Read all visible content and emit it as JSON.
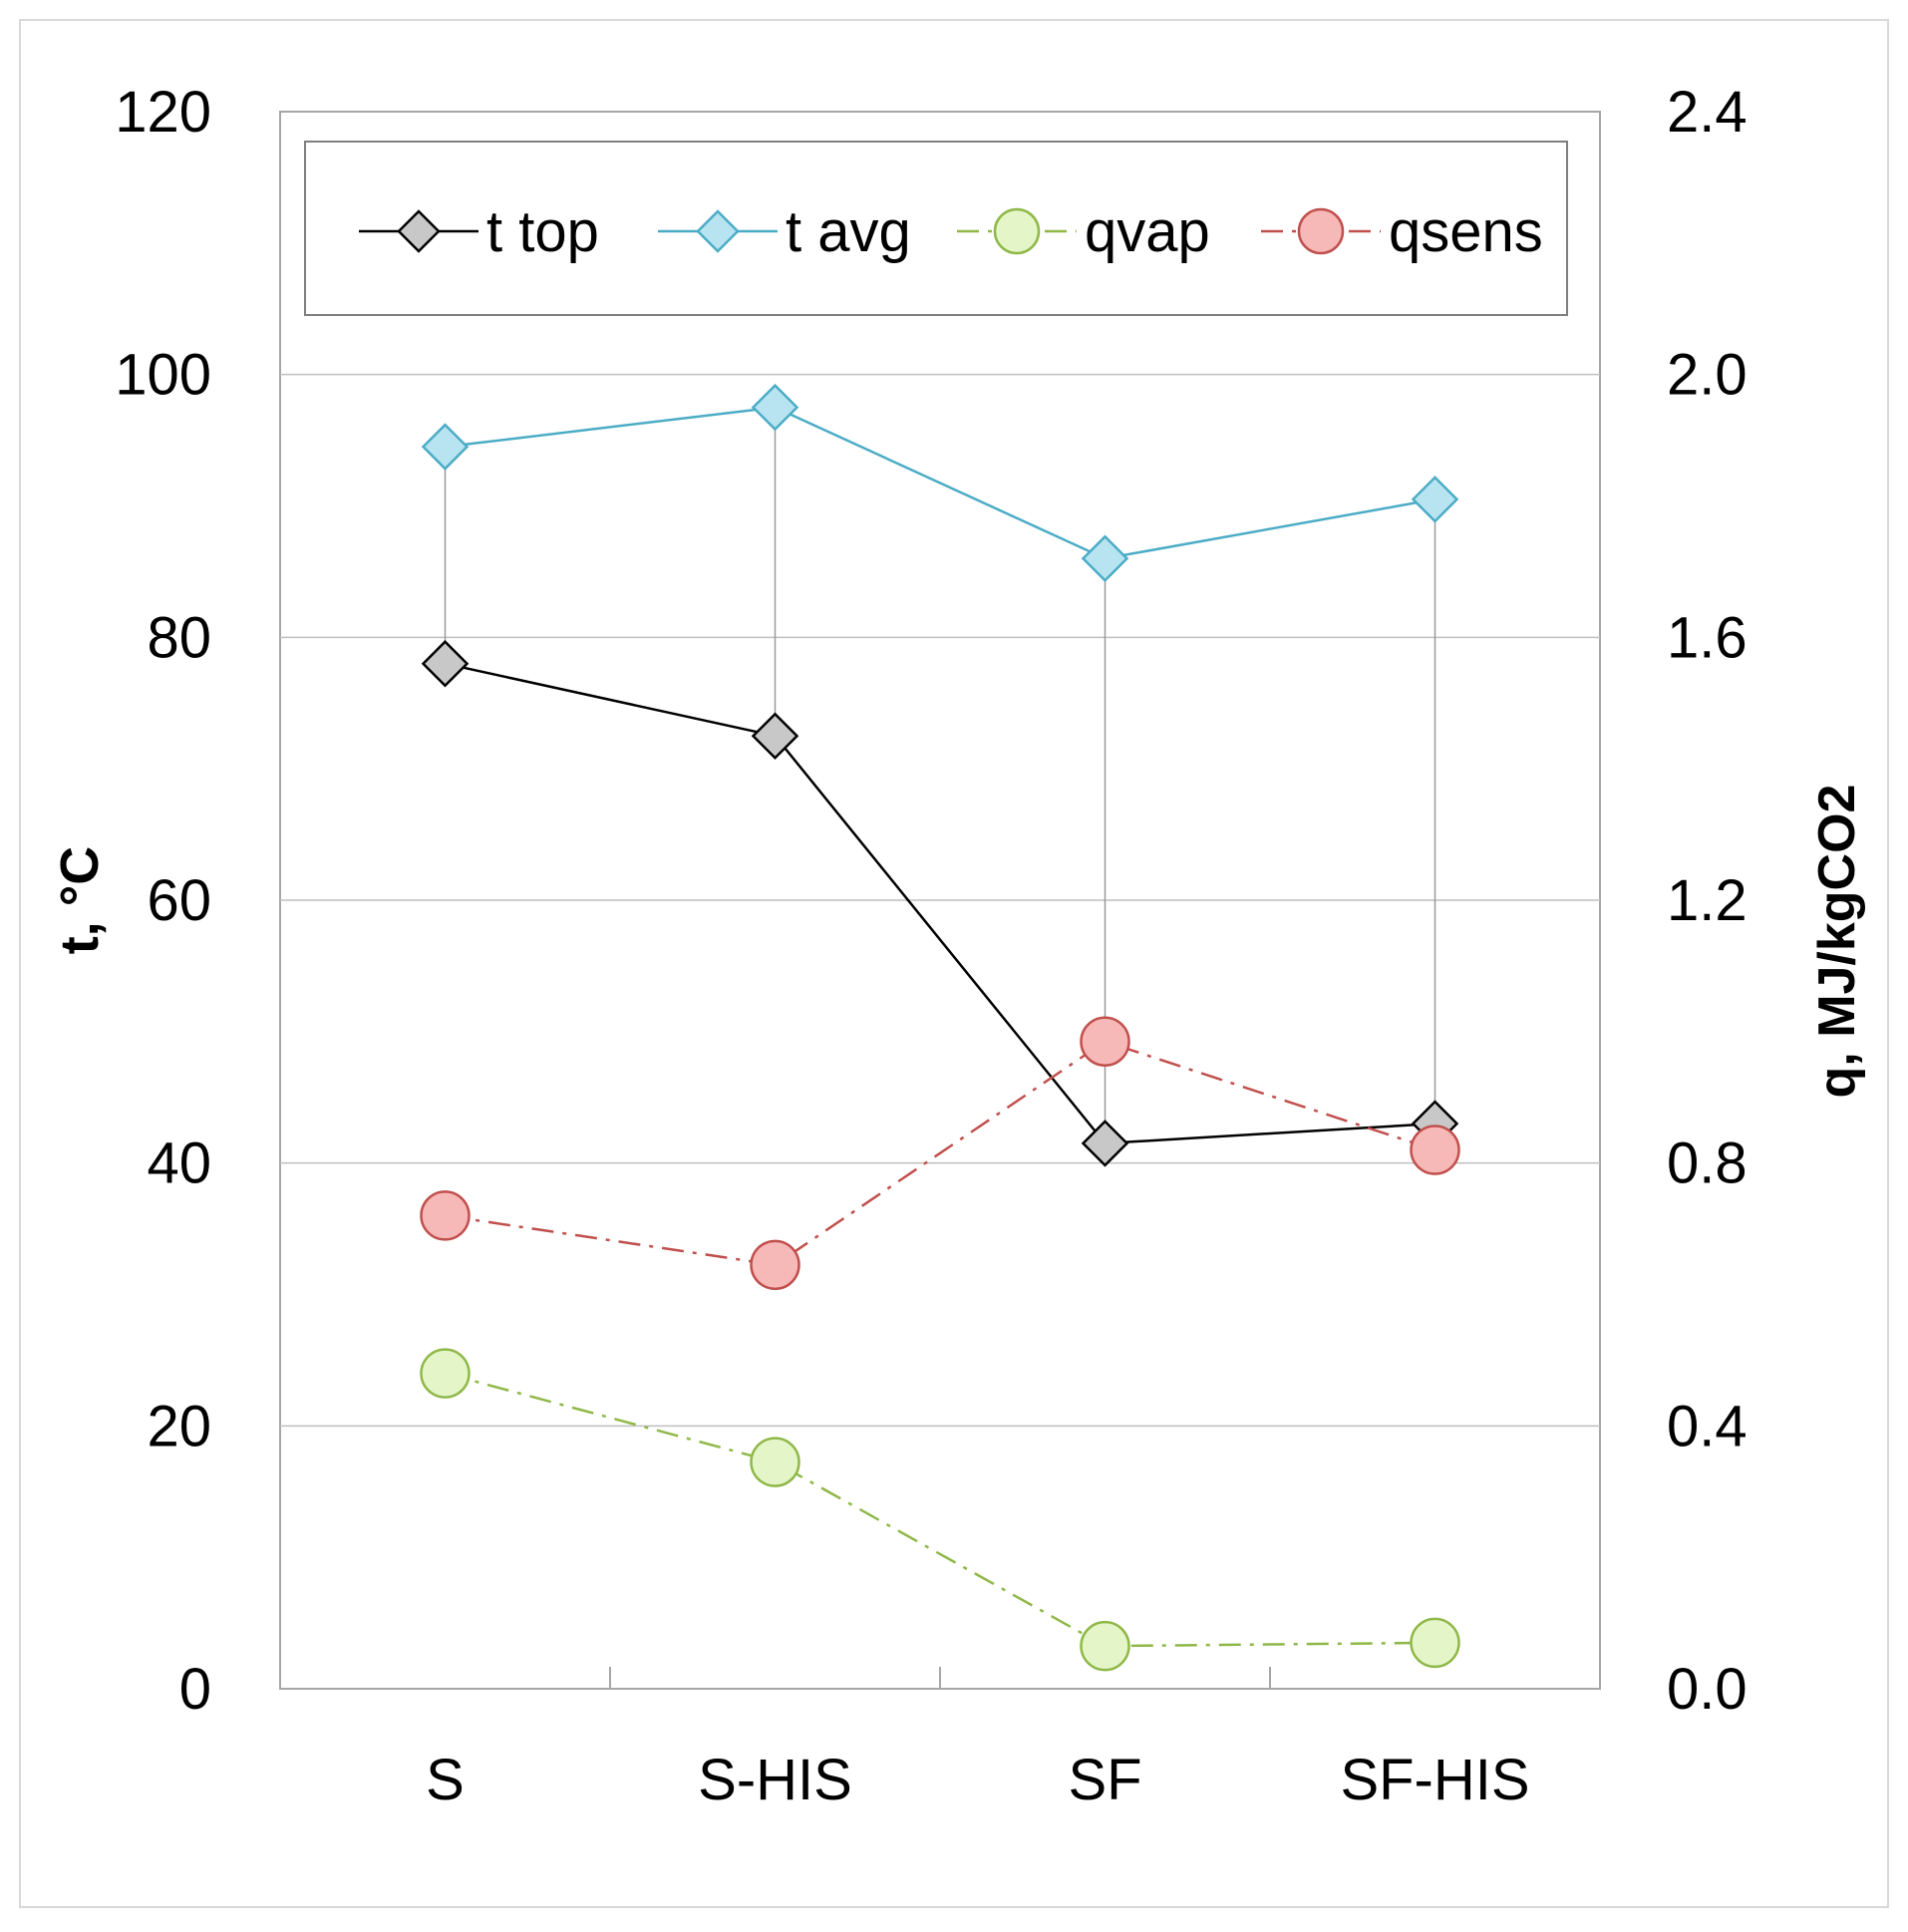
{
  "chart_data": {
    "type": "line",
    "categories": [
      "S",
      "S-HIS",
      "SF",
      "SF-HIS"
    ],
    "y_left": {
      "label": "t, °C",
      "range": [
        0,
        120
      ],
      "ticks": [
        0,
        20,
        40,
        60,
        80,
        100,
        120
      ]
    },
    "y_right": {
      "label": "q, MJ/kgCO2",
      "range": [
        0,
        2.4
      ],
      "ticks": [
        "0.0",
        "0.4",
        "0.8",
        "1.2",
        "1.6",
        "2.0",
        "2.4"
      ]
    },
    "gridlines": true,
    "legend_position": "top",
    "series": [
      {
        "name": "t top",
        "axis": "left",
        "values": [
          78,
          72.5,
          41.5,
          43
        ],
        "color": "#000000",
        "marker": "diamond",
        "fill": "#c8c8c8",
        "dash": "solid"
      },
      {
        "name": "t avg",
        "axis": "left",
        "values": [
          94.5,
          97.5,
          86,
          90.5
        ],
        "color": "#4bacc6",
        "marker": "diamond",
        "fill": "#b7e4f0",
        "dash": "solid"
      },
      {
        "name": "qvap",
        "axis": "right",
        "values": [
          0.48,
          0.345,
          0.065,
          0.07
        ],
        "color": "#8fb848",
        "marker": "circle",
        "fill": "#e4f5c8",
        "dash": "dashdot"
      },
      {
        "name": "qsens",
        "axis": "right",
        "values": [
          0.72,
          0.645,
          0.985,
          0.82
        ],
        "color": "#c0504d",
        "marker": "circle",
        "fill": "#f7b8b8",
        "dash": "dashdot"
      }
    ]
  }
}
